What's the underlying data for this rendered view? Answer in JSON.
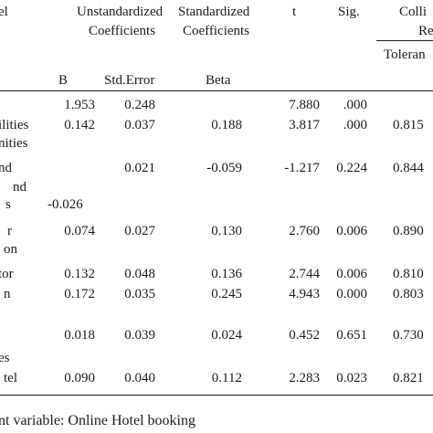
{
  "header": {
    "model": "el",
    "unstd_line1": "Unstandardized",
    "unstd_line2": "Coefficients",
    "std_line1": "Standardized",
    "std_line2": "Coefficients",
    "t": "t",
    "sig": "Sig.",
    "colli_line1": "Colli",
    "colli_line2": "Re",
    "tolerance": "Toleran",
    "b": "B",
    "stderr": "Std.Error",
    "beta": "Beta"
  },
  "rows": [
    {
      "label1": "",
      "label2": "",
      "b": "1.953",
      "se": "0.248",
      "beta": "",
      "t": "7.880",
      "sig": ".000",
      "tol": ""
    },
    {
      "label1": "ilities",
      "label2": "nities",
      "b": "0.142",
      "se": "0.037",
      "beta": "0.188",
      "t": "3.817",
      "sig": ".000",
      "tol": "0.815"
    },
    {
      "label1": "nd",
      "label2": "s",
      "b": "-0.026",
      "se": "0.021",
      "beta": "-0.059",
      "t": "-1.217",
      "sig": "0.224",
      "tol": "0.844"
    },
    {
      "label1": "r",
      "label2": "on",
      "b": "0.074",
      "se": "0.027",
      "beta": "0.130",
      "t": "2.760",
      "sig": "0.006",
      "tol": "0.890"
    },
    {
      "label1": "tor",
      "label2": "",
      "b": "0.132",
      "se": "0.048",
      "beta": "0.136",
      "t": "2.744",
      "sig": "0.006",
      "tol": "0.810"
    },
    {
      "label1": "n",
      "label2": "",
      "b": "0.172",
      "se": "0.035",
      "beta": "0.245",
      "t": "4.943",
      "sig": "0.000",
      "tol": "0.803"
    },
    {
      "label1": "",
      "label2": "es",
      "b": "0.018",
      "se": "0.039",
      "beta": "0.024",
      "t": "0.452",
      "sig": "0.651",
      "tol": "0.730"
    },
    {
      "label1": "tel",
      "label2": "",
      "b": "0.090",
      "se": "0.040",
      "beta": "0.112",
      "t": "2.283",
      "sig": "0.023",
      "tol": "0.821"
    }
  ],
  "footnote": "nt variable: Online Hotel booking"
}
